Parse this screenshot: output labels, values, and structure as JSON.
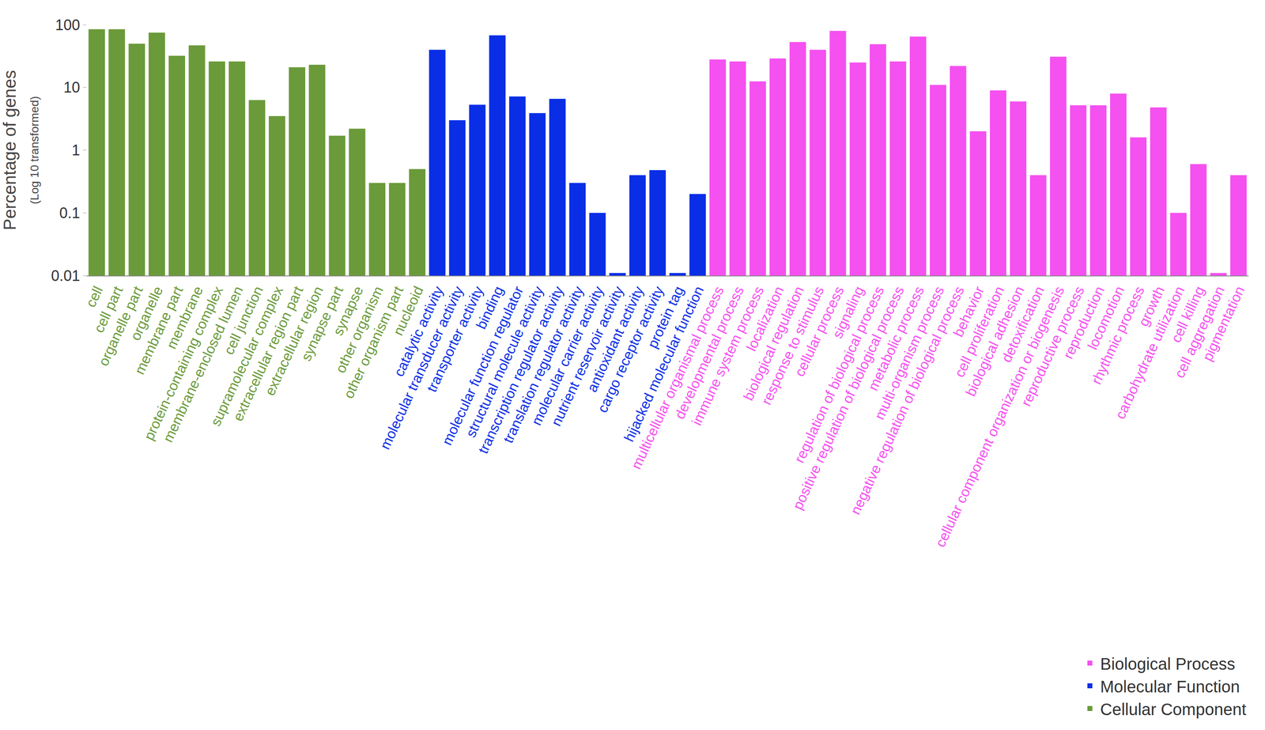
{
  "chart_data": {
    "type": "bar",
    "y_label": "Percentage of genes",
    "y_label_note": "(Log 10 transformed)",
    "categories": [
      "cell",
      "cell part",
      "organelle part",
      "organelle",
      "membrane part",
      "membrane",
      "protein-containing complex",
      "membrane-enclosed lumen",
      "cell junction",
      "supramolecular complex",
      "extracellular region part",
      "extracellular region",
      "synapse part",
      "synapse",
      "other organism",
      "other organism part",
      "nucleoid",
      "catalytic activity",
      "molecular transducer activity",
      "transporter activity",
      "binding",
      "molecular function regulator",
      "structural molecule activity",
      "transcription regulator activity",
      "translation regulator activity",
      "molecular carrier activity",
      "nutrient reservoir activity",
      "antioxidant activity",
      "cargo receptor activity",
      "protein tag",
      "hijacked molecular function",
      "multicellular organismal process",
      "developmental process",
      "immune system process",
      "localization",
      "biological regulation",
      "response to stimulus",
      "cellular process",
      "signaling",
      "regulation of biological process",
      "positive regulation of biological process",
      "metabolic process",
      "multi-organism process",
      "negative regulation of biological process",
      "behavior",
      "cell proliferation",
      "biological adhesion",
      "detoxification",
      "cellular component organization or biogenesis",
      "reproductive process",
      "reproduction",
      "locomotion",
      "rhythmic process",
      "growth",
      "carbohydrate utilization",
      "cell killing",
      "cell aggregation",
      "pigmentation"
    ],
    "series": [
      {
        "name": "Cellular Component",
        "color": "#6a9a3a",
        "values": [
          85,
          85,
          50,
          75,
          32,
          47,
          26,
          26,
          6.3,
          3.5,
          21,
          23,
          1.7,
          2.2,
          0.3,
          0.3,
          0.5,
          null,
          null,
          null,
          null,
          null,
          null,
          null,
          null,
          null,
          null,
          null,
          null,
          null,
          null,
          null,
          null,
          null,
          null,
          null,
          null,
          null,
          null,
          null,
          null,
          null,
          null,
          null,
          null,
          null,
          null,
          null,
          null,
          null,
          null,
          null,
          null,
          null,
          null,
          null,
          null,
          null
        ]
      },
      {
        "name": "Molecular Function",
        "color": "#0a2ee6",
        "values": [
          null,
          null,
          null,
          null,
          null,
          null,
          null,
          null,
          null,
          null,
          null,
          null,
          null,
          null,
          null,
          null,
          null,
          40,
          3,
          5.3,
          68,
          7.2,
          3.9,
          6.6,
          0.3,
          0.1,
          0.011,
          0.4,
          0.48,
          0.011,
          0.2,
          null,
          null,
          null,
          null,
          null,
          null,
          null,
          null,
          null,
          null,
          null,
          null,
          null,
          null,
          null,
          null,
          null,
          null,
          null,
          null,
          null,
          null,
          null,
          null,
          null,
          null,
          null
        ]
      },
      {
        "name": "Biological Process",
        "color": "#f550f0",
        "values": [
          null,
          null,
          null,
          null,
          null,
          null,
          null,
          null,
          null,
          null,
          null,
          null,
          null,
          null,
          null,
          null,
          null,
          null,
          null,
          null,
          null,
          null,
          null,
          null,
          null,
          null,
          null,
          null,
          null,
          null,
          null,
          28,
          26,
          12.5,
          29,
          53,
          40,
          80,
          25,
          49,
          26,
          65,
          11,
          22,
          2,
          9,
          6,
          0.4,
          31,
          5.2,
          5.2,
          8,
          1.6,
          4.8,
          0.1,
          0.6,
          0.011,
          0.4
        ]
      }
    ],
    "ylim": [
      0.01,
      100
    ],
    "yticks": [
      0.01,
      0.1,
      1,
      10,
      100
    ],
    "log": "y",
    "grid": false,
    "legend": "bottom right"
  }
}
